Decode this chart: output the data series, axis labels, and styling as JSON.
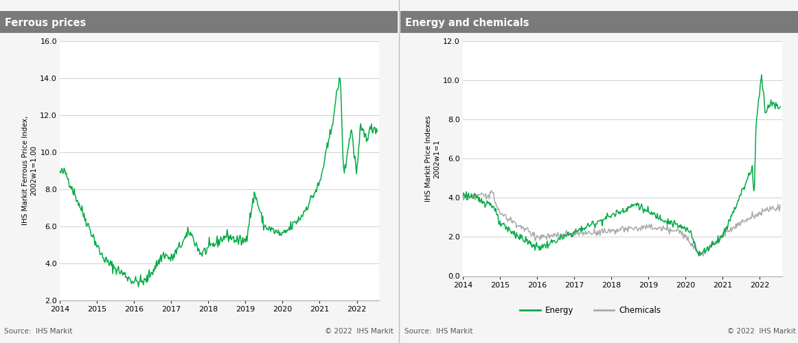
{
  "ferrous_title": "Ferrous prices",
  "energy_title": "Energy and chemicals",
  "ferrous_ylabel": "IHS Markit Ferrous Price Index,\n2002w1=1.00",
  "energy_ylabel": "IHS Markit Price Indexes\n2002w1=1",
  "ferrous_ylim": [
    2.0,
    16.0
  ],
  "ferrous_yticks": [
    2.0,
    4.0,
    6.0,
    8.0,
    10.0,
    12.0,
    14.0,
    16.0
  ],
  "energy_ylim": [
    0.0,
    12.0
  ],
  "energy_yticks": [
    0.0,
    2.0,
    4.0,
    6.0,
    8.0,
    10.0,
    12.0
  ],
  "xlim_start": 2014.0,
  "xlim_end": 2022.6,
  "xticks": [
    2014,
    2015,
    2016,
    2017,
    2018,
    2019,
    2020,
    2021,
    2022
  ],
  "green_color": "#00aa44",
  "grey_color": "#aaaaaa",
  "title_bg_color": "#7a7a7a",
  "title_text_color": "#ffffff",
  "fig_bg_color": "#f5f5f5",
  "plot_bg_color": "#ffffff",
  "divider_color": "#cccccc",
  "grid_color": "#d0d0d0",
  "source_text": "Source:  IHS Markit",
  "copyright_text": "© 2022  IHS Markit",
  "footer_fontsize": 7.5,
  "title_fontsize": 10.5,
  "axis_label_fontsize": 7.5,
  "tick_fontsize": 8.0
}
